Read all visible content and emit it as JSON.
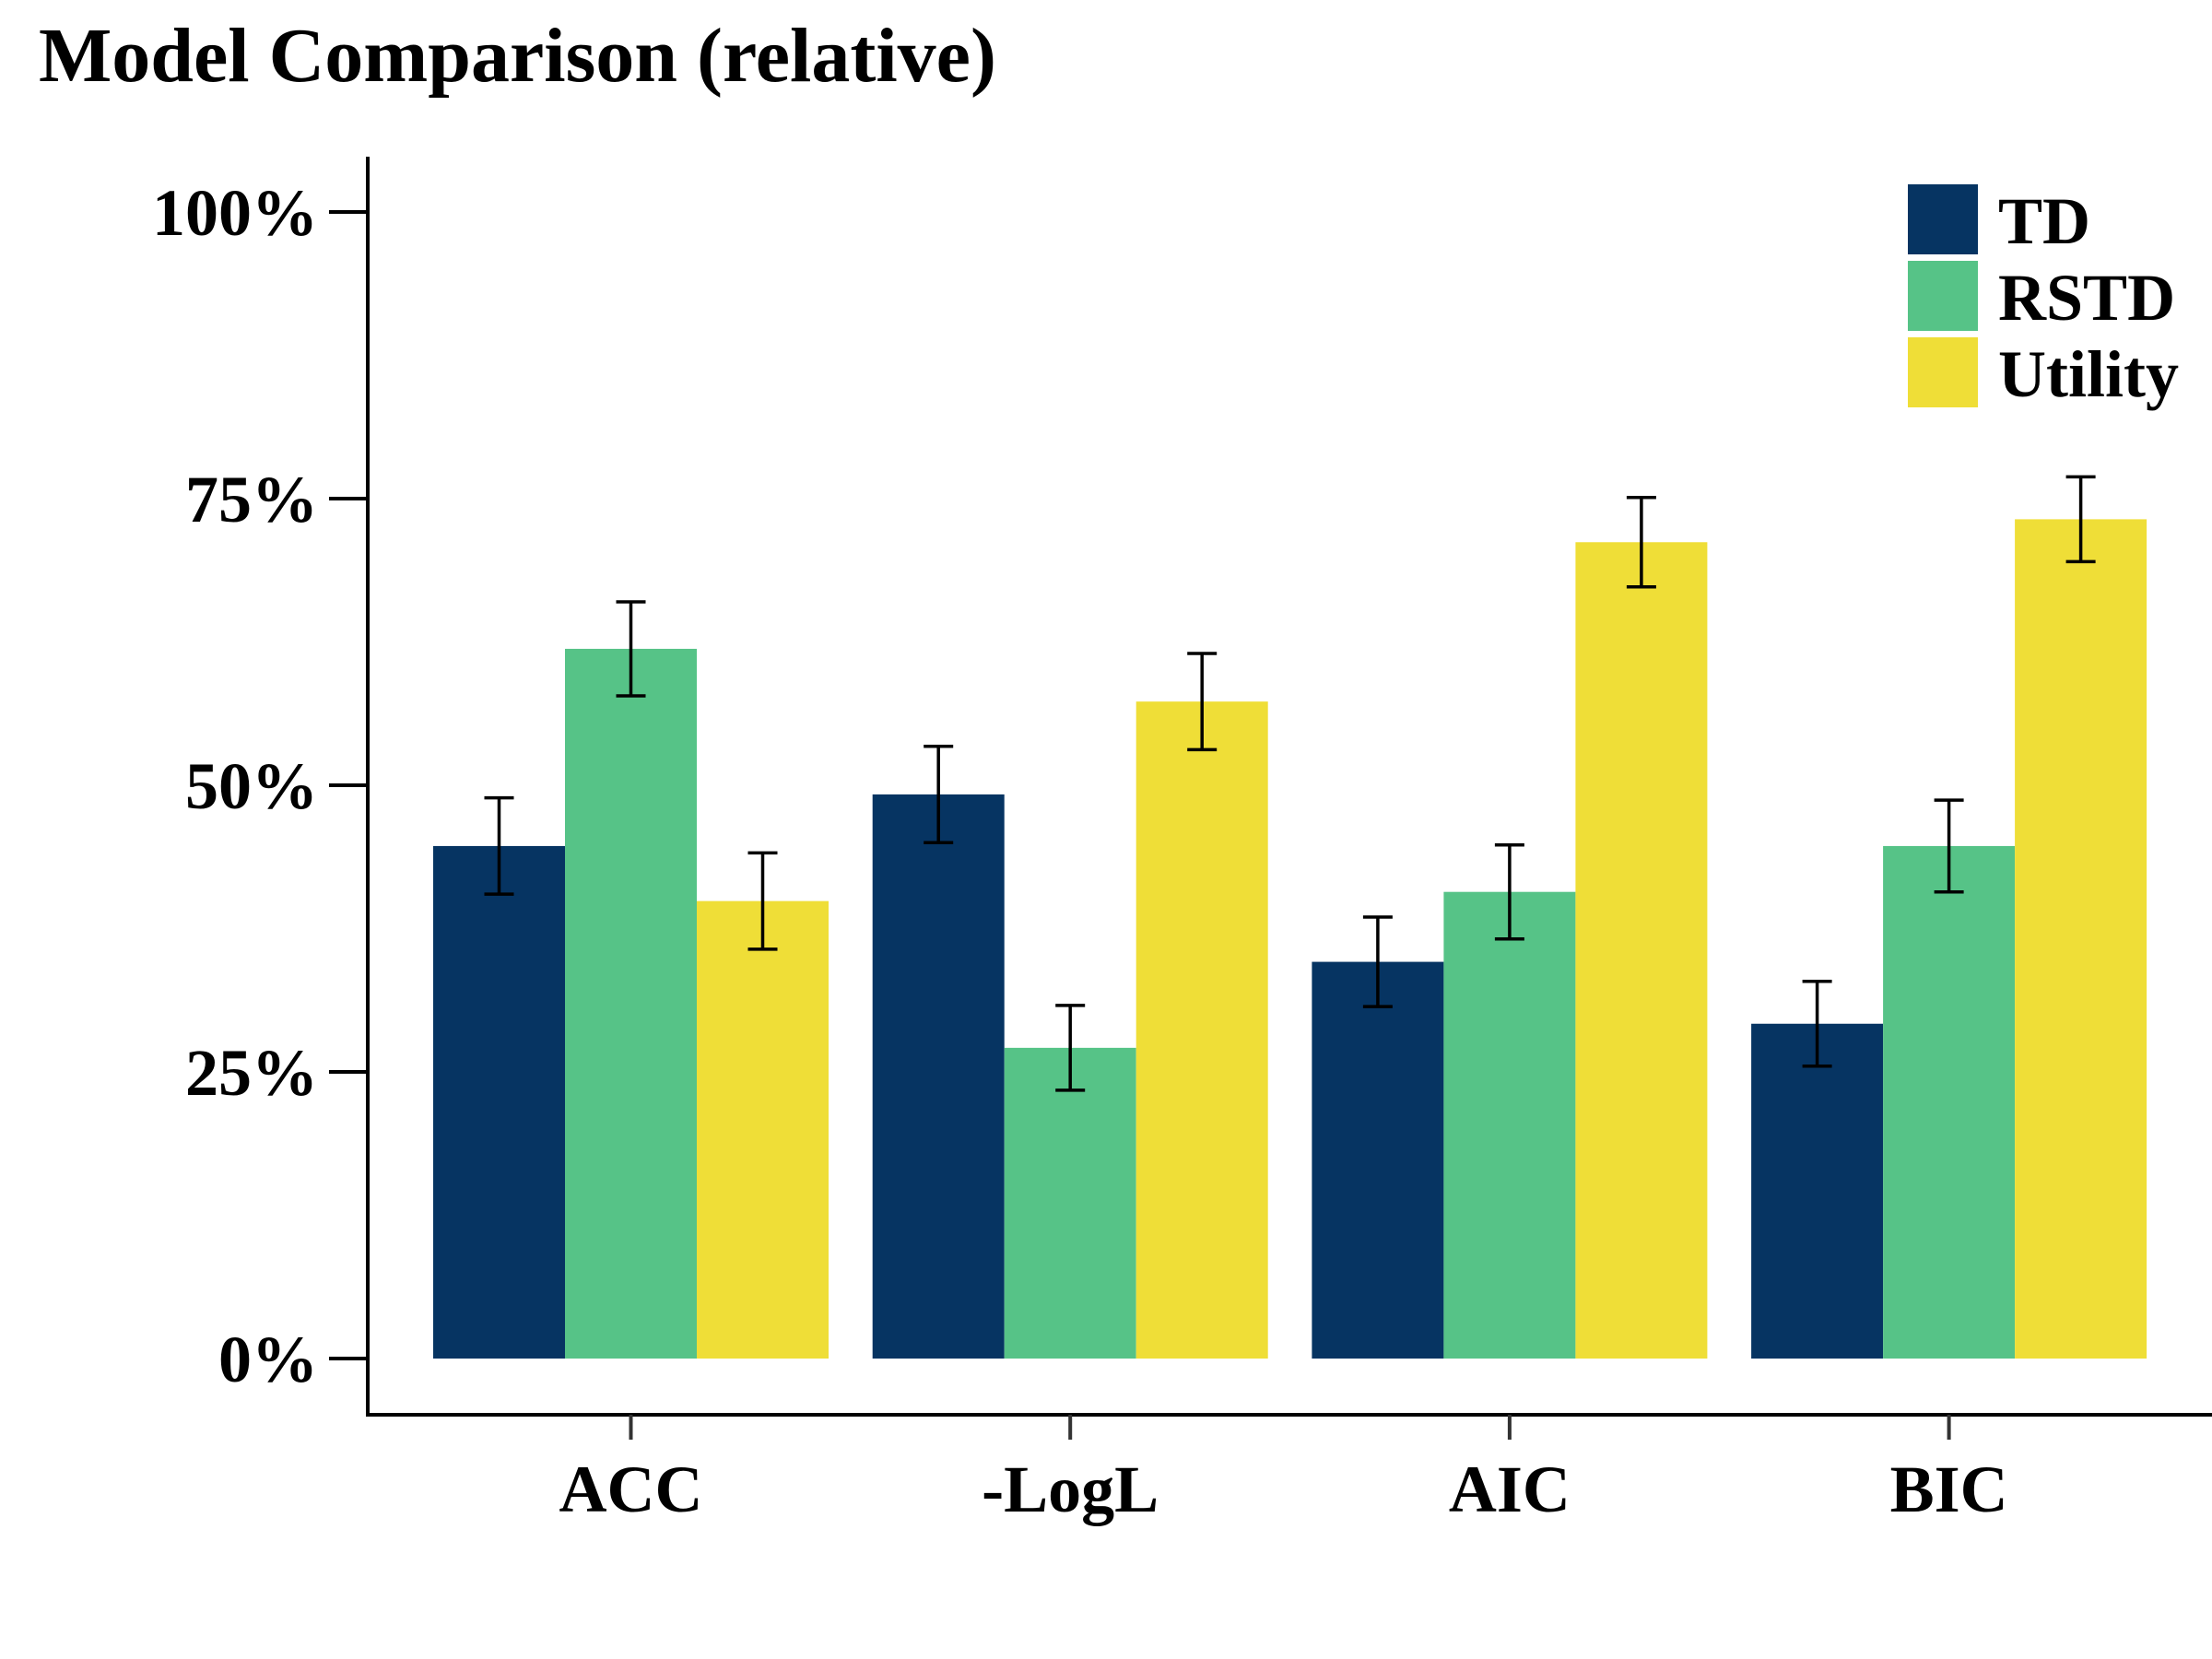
{
  "chart_data": {
    "type": "bar",
    "title": "Model Comparison (relative)",
    "xlabel": "",
    "ylabel": "",
    "ylim": [
      0,
      100
    ],
    "yticks": [
      0,
      25,
      50,
      75,
      100
    ],
    "ytick_labels": [
      "0%",
      "25%",
      "50%",
      "75%",
      "100%"
    ],
    "categories": [
      "ACC",
      "-LogL",
      "AIC",
      "BIC"
    ],
    "series": [
      {
        "name": "TD",
        "color": "#063462",
        "values": [
          44.7,
          49.2,
          34.6,
          29.2
        ],
        "errors": [
          4.2,
          4.2,
          3.9,
          3.7
        ]
      },
      {
        "name": "RSTD",
        "color": "#56c387",
        "values": [
          61.9,
          27.1,
          40.7,
          44.7
        ],
        "errors": [
          4.1,
          3.7,
          4.1,
          4.0
        ]
      },
      {
        "name": "Utility",
        "color": "#efde37",
        "values": [
          39.9,
          57.3,
          71.2,
          73.2
        ],
        "errors": [
          4.2,
          4.2,
          3.9,
          3.7
        ]
      }
    ],
    "legend_position": "top-right",
    "grid": false,
    "error_bars": true
  }
}
